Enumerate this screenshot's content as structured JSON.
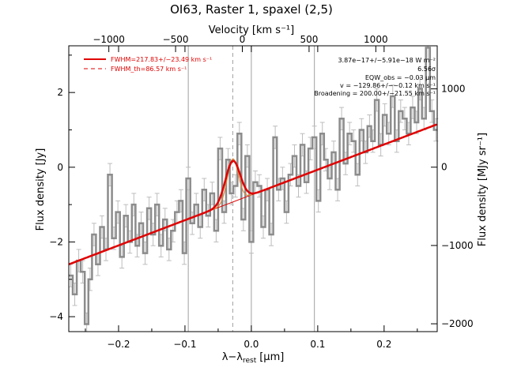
{
  "chart_data": {
    "type": "line",
    "title": "OI63, Raster 1, spaxel (2,5)",
    "xlabel": "λ−λ",
    "xlabel_sub": "rest",
    "xlabel_unit": "[μm]",
    "ylabel": "Flux density [Jy]",
    "y2label": "Flux density [MJy sr⁻¹]",
    "x2label": "Velocity [km s⁻¹]",
    "xlim": [
      -0.275,
      0.28
    ],
    "ylim": [
      -4.4,
      3.25
    ],
    "x2lim": [
      -1300,
      1460
    ],
    "y2lim": [
      -2100,
      1550
    ],
    "xticks": [
      -0.2,
      -0.1,
      0.0,
      0.1,
      0.2
    ],
    "xtick_labels": [
      "−0.2",
      "−0.1",
      "0.0",
      "0.1",
      "0.2"
    ],
    "yticks": [
      -4,
      -2,
      0,
      2
    ],
    "ytick_labels": [
      "−4",
      "−2",
      "0",
      "2"
    ],
    "x2ticks": [
      -1000,
      -500,
      0,
      500,
      1000
    ],
    "x2tick_labels": [
      "−1000",
      "−500",
      "0",
      "500",
      "1000"
    ],
    "y2ticks": [
      -2000,
      -1000,
      0,
      1000
    ],
    "y2tick_labels": [
      "−2000",
      "−1000",
      "0",
      "1000"
    ],
    "vlines_solid": [
      -0.095,
      0.0,
      0.095
    ],
    "vline_dashed": -0.028,
    "legend": [
      {
        "label": "FWHM=217.83+/−23.49 km s⁻¹",
        "style": "solid",
        "color": "#e00000"
      },
      {
        "label": "FWHM_th=86.57 km s⁻¹",
        "style": "dashed",
        "color": "#e00000"
      }
    ],
    "annotations": [
      "3.87e−17+/−5.91e−18 W m⁻²",
      "6.56σ",
      "EQW_obs = −0.03 μm",
      "v = −129.86+/−−0.12 km s⁻¹",
      "Broadening = 200.00+/−21.55 km s⁻¹"
    ],
    "continuum": {
      "x": [
        -0.275,
        0.28
      ],
      "y": [
        -2.6,
        1.15
      ]
    },
    "gaussian": {
      "center": -0.028,
      "sigma": 0.011,
      "amplitude": 1.1
    },
    "data_error": 0.3,
    "data_x": [
      -0.272,
      -0.266,
      -0.26,
      -0.254,
      -0.248,
      -0.243,
      -0.237,
      -0.231,
      -0.225,
      -0.219,
      -0.213,
      -0.207,
      -0.201,
      -0.195,
      -0.189,
      -0.183,
      -0.177,
      -0.172,
      -0.166,
      -0.16,
      -0.154,
      -0.148,
      -0.142,
      -0.136,
      -0.13,
      -0.124,
      -0.118,
      -0.112,
      -0.106,
      -0.101,
      -0.095,
      -0.089,
      -0.083,
      -0.077,
      -0.071,
      -0.065,
      -0.059,
      -0.053,
      -0.047,
      -0.041,
      -0.035,
      -0.03,
      -0.024,
      -0.018,
      -0.012,
      -0.006,
      0.0,
      0.006,
      0.012,
      0.018,
      0.024,
      0.03,
      0.036,
      0.041,
      0.047,
      0.053,
      0.059,
      0.065,
      0.071,
      0.077,
      0.083,
      0.089,
      0.095,
      0.101,
      0.107,
      0.112,
      0.118,
      0.124,
      0.13,
      0.136,
      0.142,
      0.148,
      0.154,
      0.16,
      0.166,
      0.172,
      0.178,
      0.183,
      0.189,
      0.195,
      0.201,
      0.207,
      0.213,
      0.219,
      0.225,
      0.231,
      0.237,
      0.243,
      0.249,
      0.254,
      0.26,
      0.266,
      0.272,
      0.278
    ],
    "data_y": [
      -2.9,
      -3.4,
      -2.5,
      -2.8,
      -4.2,
      -3.0,
      -1.8,
      -2.6,
      -1.6,
      -2.2,
      -0.2,
      -1.9,
      -1.2,
      -2.4,
      -1.3,
      -2.0,
      -1.0,
      -2.1,
      -1.5,
      -2.3,
      -1.1,
      -1.8,
      -1.0,
      -2.1,
      -1.4,
      -2.2,
      -1.7,
      -1.2,
      -0.9,
      -2.3,
      -0.3,
      -1.5,
      -1.0,
      -1.6,
      -0.6,
      -1.3,
      -0.7,
      -1.7,
      0.5,
      -1.2,
      0.2,
      -0.7,
      -0.5,
      0.9,
      -1.4,
      0.3,
      -2.0,
      -0.4,
      -0.5,
      -1.6,
      -0.6,
      -1.8,
      0.8,
      -0.6,
      -0.3,
      -1.2,
      -0.2,
      0.3,
      -0.5,
      0.6,
      -0.4,
      0.5,
      0.8,
      -0.9,
      0.9,
      0.2,
      -0.3,
      0.4,
      -0.6,
      1.3,
      0.1,
      0.9,
      0.7,
      -0.2,
      1.0,
      0.4,
      1.1,
      0.7,
      1.8,
      0.6,
      1.4,
      0.9,
      1.9,
      0.7,
      1.5,
      1.3,
      0.9,
      1.6,
      1.2,
      2.1,
      1.3,
      3.2,
      1.5,
      1.0
    ],
    "grid": false
  }
}
